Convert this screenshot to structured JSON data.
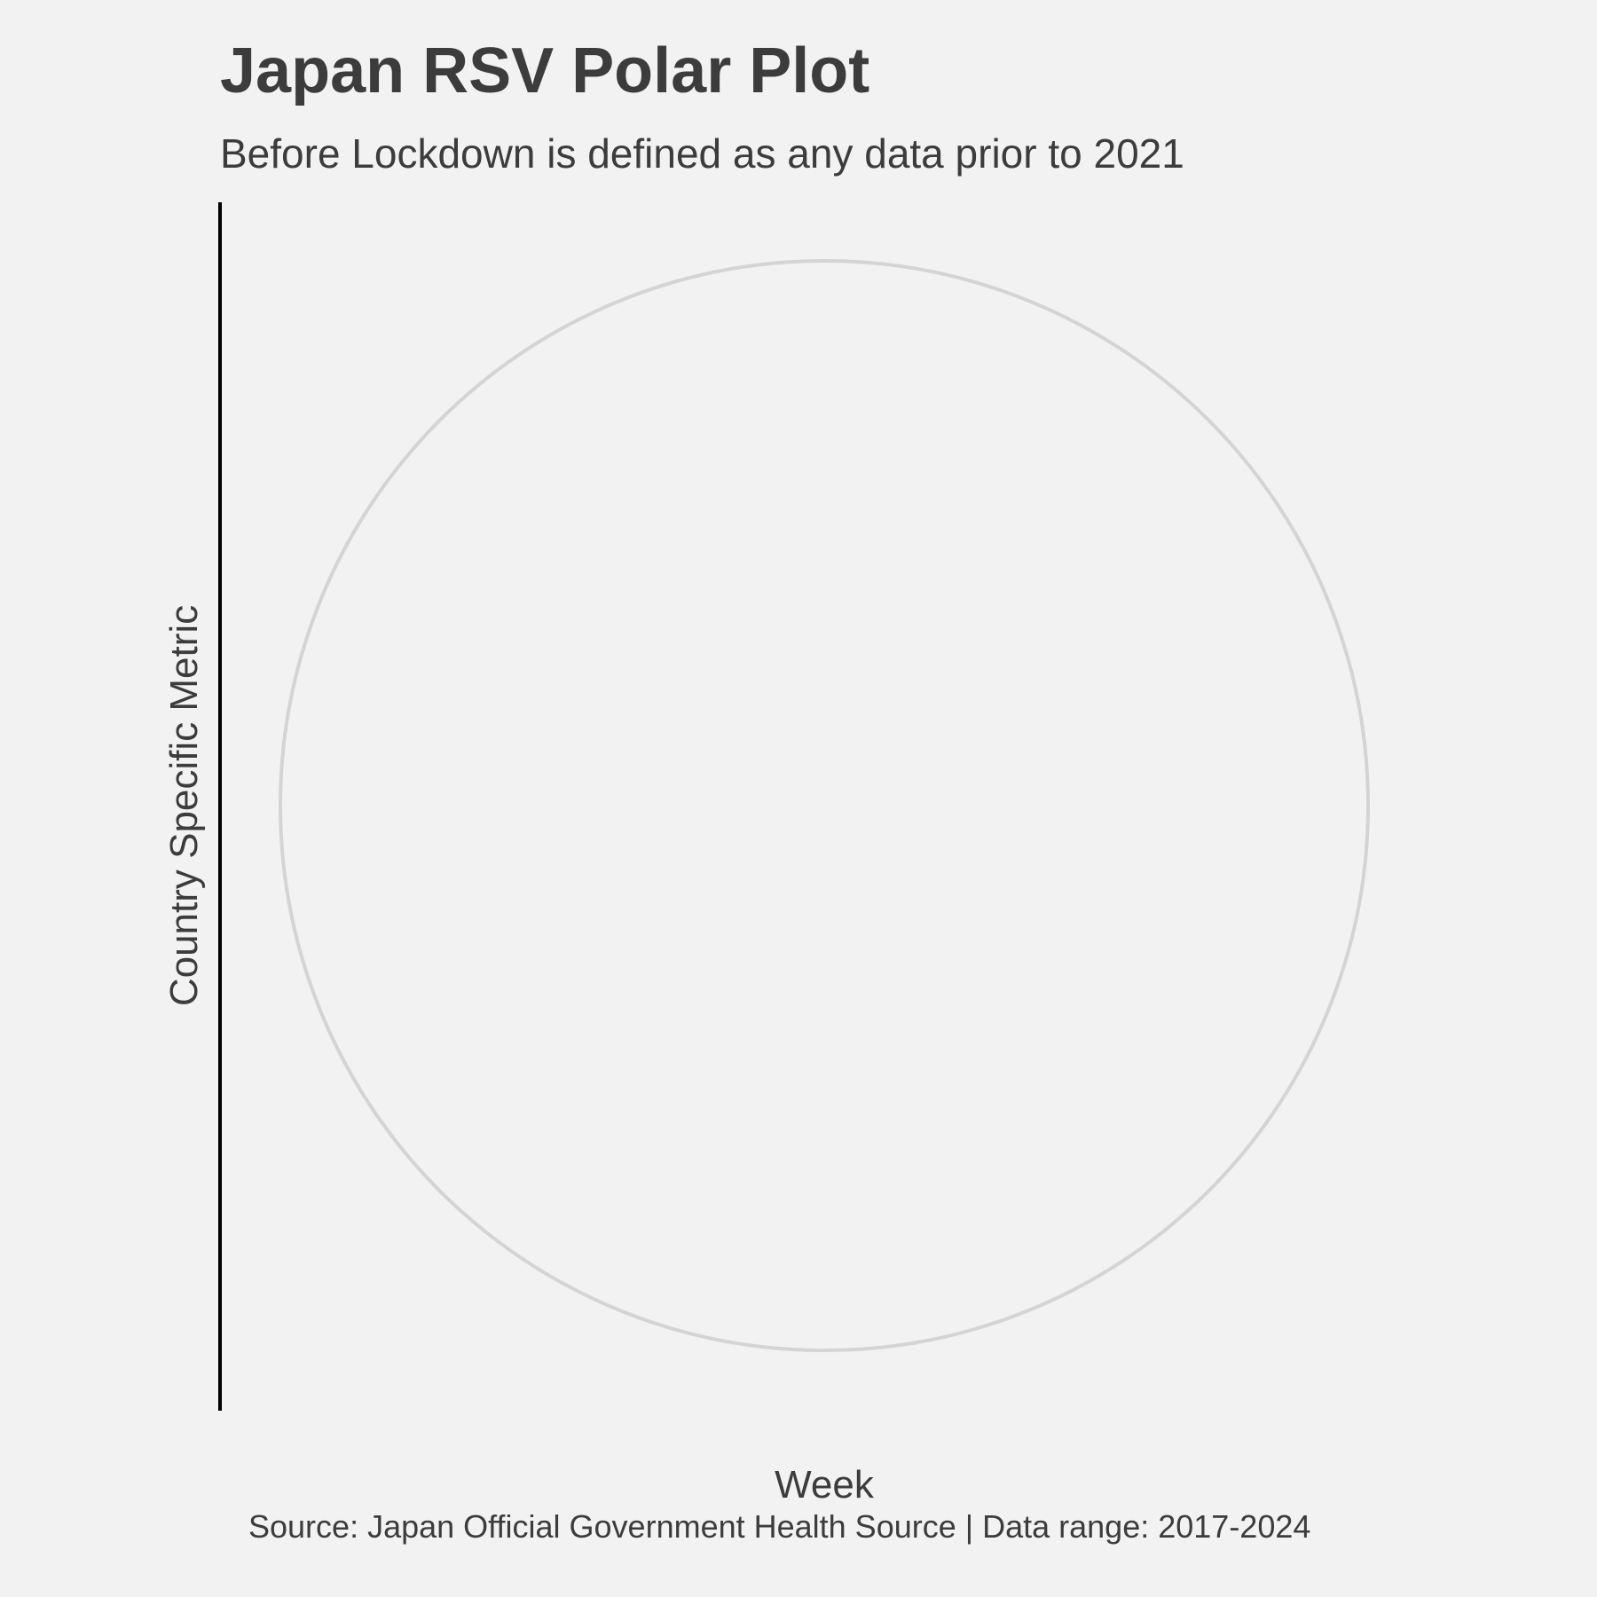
{
  "chart_data": {
    "type": "polar",
    "title": "Japan RSV Polar Plot",
    "subtitle": "Before Lockdown is defined as any data prior to 2021",
    "xlabel": "Week",
    "ylabel": "Country Specific Metric",
    "caption": "Source: Japan Official Government Health Source | Data range: 2017-2024",
    "series": [],
    "grid": true,
    "legend": "none",
    "colors": {
      "background": "#f2f2f2",
      "text": "#3c3c3c",
      "grid": "#d4d4d4",
      "axis": "#000000"
    }
  }
}
